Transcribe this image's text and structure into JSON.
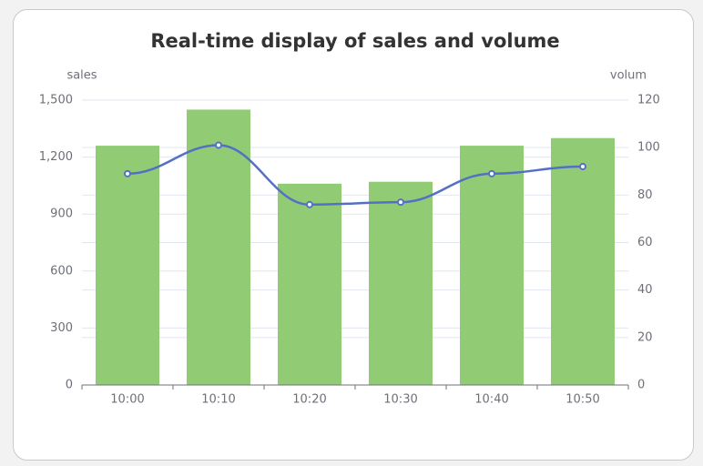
{
  "chart_data": {
    "type": "bar",
    "title": "Real-time display of sales and volume",
    "y_label": "sales",
    "y2_label": "volum",
    "categories": [
      "10:00",
      "10:10",
      "10:20",
      "10:30",
      "10:40",
      "10:50"
    ],
    "series": [
      {
        "type": "bar",
        "color": "#91cc75",
        "values": [
          1260,
          1450,
          1060,
          1070,
          1260,
          1300
        ]
      },
      {
        "type": "line",
        "axis": "y2",
        "color": "#5470c6",
        "values": [
          89,
          101,
          76,
          77,
          89,
          92
        ]
      }
    ],
    "ylim": [
      0,
      1500
    ],
    "yticks": [
      0,
      300,
      600,
      900,
      {
        "value": 1200,
        "label": "1,200"
      },
      {
        "value": 1500,
        "label": "1,500"
      }
    ],
    "y2lim": [
      0,
      120
    ],
    "y2ticks": [
      0,
      20,
      40,
      60,
      80,
      100,
      120
    ],
    "grid": true
  }
}
